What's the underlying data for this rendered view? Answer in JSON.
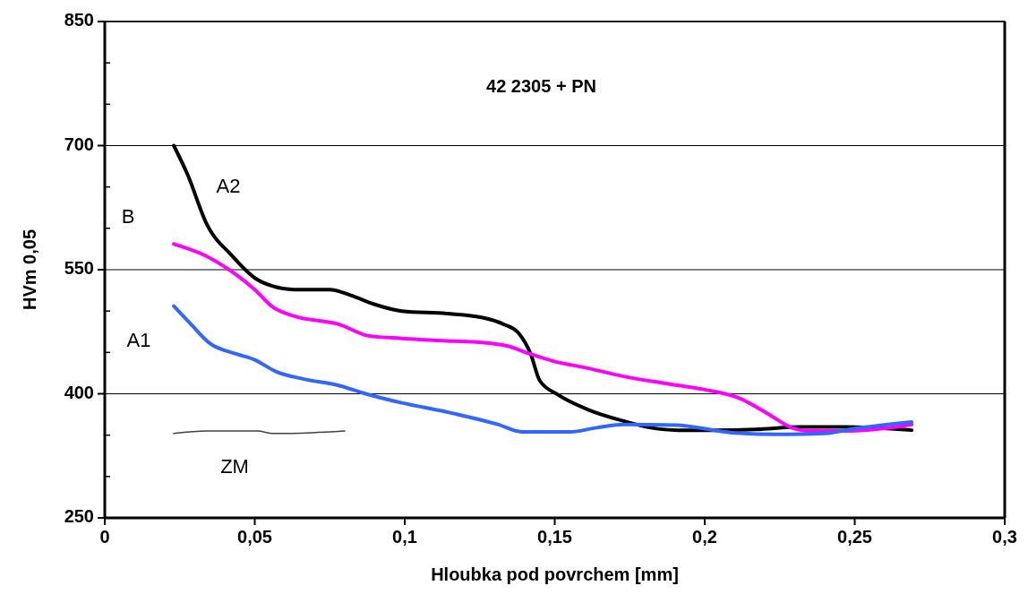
{
  "chart_data": {
    "type": "line",
    "title": "42 2305 + PN",
    "xlabel": "Hloubka pod povrchem [mm]",
    "ylabel": "HVm 0,05",
    "xlim": [
      0,
      0.3
    ],
    "xticks": [
      0,
      {
        "value": 0.05,
        "label": "0,05"
      },
      {
        "value": 0.1,
        "label": "0,1"
      },
      {
        "value": 0.15,
        "label": "0,15"
      },
      {
        "value": 0.2,
        "label": "0,2"
      },
      {
        "value": 0.25,
        "label": "0,25"
      },
      {
        "value": 0.3,
        "label": "0,3"
      }
    ],
    "ylim": [
      250,
      850
    ],
    "yticks": [
      250,
      {
        "value": 300,
        "label": null
      },
      {
        "value": 350,
        "label": null
      },
      400,
      {
        "value": 450,
        "label": null
      },
      {
        "value": 500,
        "label": null
      },
      550,
      {
        "value": 600,
        "label": null
      },
      {
        "value": 650,
        "label": null
      },
      700,
      {
        "value": 750,
        "label": null
      },
      {
        "value": 800,
        "label": null
      },
      850
    ],
    "grid": "y",
    "marker": "none",
    "line_style": "solid",
    "series": [
      {
        "name": "A2",
        "color": "#000000",
        "x": [
          0.023,
          0.0276,
          0.034,
          0.0424,
          0.05,
          0.056,
          0.063,
          0.075,
          0.082,
          0.09,
          0.099,
          0.114,
          0.126,
          0.133,
          0.138,
          0.142,
          0.145,
          0.151,
          0.161,
          0.173,
          0.182,
          0.191,
          0.203,
          0.217,
          0.232,
          0.247,
          0.269
        ],
        "values": [
          700,
          665,
          605,
          567,
          540,
          530,
          526,
          526,
          519,
          508,
          500,
          497,
          492,
          484,
          473,
          448,
          416,
          399,
          381,
          367,
          359,
          356,
          356,
          357,
          360,
          360,
          356
        ]
      },
      {
        "name": "B",
        "color": "#ff00ff",
        "x": [
          0.023,
          0.0335,
          0.043,
          0.05,
          0.056,
          0.063,
          0.078,
          0.088,
          0.099,
          0.114,
          0.126,
          0.134,
          0.142,
          0.149,
          0.161,
          0.173,
          0.188,
          0.2,
          0.212,
          0.221,
          0.229,
          0.235,
          0.247,
          0.262,
          0.269
        ],
        "values": [
          581,
          567,
          546,
          526,
          505,
          494,
          484,
          470,
          467,
          464,
          462,
          458,
          448,
          440,
          431,
          421,
          412,
          405,
          394,
          376,
          359,
          355,
          355,
          359,
          363
        ]
      },
      {
        "name": "A1",
        "color": "#3366ff",
        "x": [
          0.023,
          0.029,
          0.035,
          0.044,
          0.05,
          0.057,
          0.066,
          0.078,
          0.087,
          0.099,
          0.114,
          0.131,
          0.139,
          0.155,
          0.164,
          0.173,
          0.191,
          0.209,
          0.226,
          0.24,
          0.25,
          0.269
        ],
        "values": [
          506,
          483,
          461,
          448,
          441,
          427,
          418,
          410,
          400,
          389,
          378,
          363,
          354,
          354,
          359,
          363,
          362,
          353,
          351,
          352,
          358,
          366
        ]
      },
      {
        "name": "ZM",
        "color": "#404040",
        "x": [
          0.023,
          0.034,
          0.051,
          0.056,
          0.069,
          0.08
        ],
        "values": [
          352,
          355,
          355,
          352,
          353,
          355
        ]
      }
    ]
  }
}
